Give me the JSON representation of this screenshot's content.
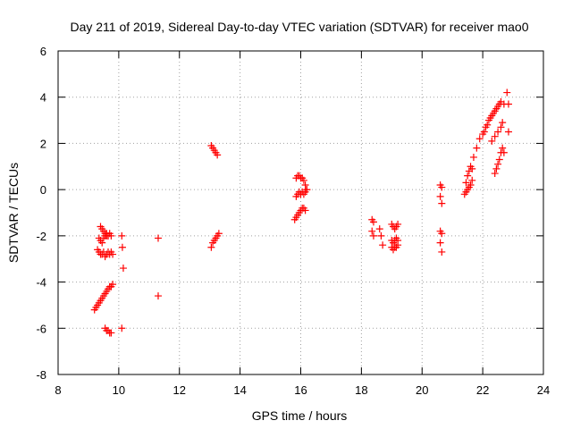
{
  "chart_data": {
    "type": "scatter",
    "title": "Day 211 of 2019, Sidereal Day-to-day VTEC variation (SDTVAR) for receiver mao0",
    "xlabel": "GPS time / hours",
    "ylabel": "SDTVAR / TECUs",
    "xlim": [
      8,
      24
    ],
    "ylim": [
      -8,
      6
    ],
    "xticks": [
      8,
      10,
      12,
      14,
      16,
      18,
      20,
      22,
      24
    ],
    "yticks": [
      -8,
      -6,
      -4,
      -2,
      0,
      2,
      4,
      6
    ],
    "xtick_labels": [
      "8",
      "10",
      "12",
      "14",
      "16",
      "18",
      "20",
      "22",
      "24"
    ],
    "ytick_labels": [
      "-8",
      "-6",
      "-4",
      "-2",
      "0",
      "2",
      "4",
      "6"
    ],
    "grid": true,
    "marker": "+",
    "color": "#ff0000",
    "series": [
      {
        "name": "SDTVAR",
        "x": [
          9.4,
          9.45,
          9.5,
          9.55,
          9.6,
          9.65,
          9.35,
          9.4,
          9.45,
          9.5,
          9.55,
          9.6,
          9.65,
          9.7,
          9.75,
          9.3,
          9.35,
          9.4,
          9.45,
          9.5,
          9.55,
          9.6,
          9.65,
          9.7,
          9.75,
          9.8,
          9.2,
          9.25,
          9.3,
          9.35,
          9.4,
          9.45,
          9.5,
          9.55,
          9.6,
          9.65,
          9.7,
          9.75,
          9.8,
          9.55,
          9.6,
          9.65,
          9.7,
          9.75,
          10.1,
          10.12,
          10.15,
          10.1,
          11.3,
          11.3,
          13.05,
          13.1,
          13.15,
          13.2,
          13.25,
          13.05,
          13.1,
          13.15,
          13.2,
          13.25,
          13.3,
          15.8,
          15.85,
          15.9,
          15.95,
          16.0,
          16.05,
          16.1,
          16.15,
          15.85,
          15.9,
          15.95,
          16.0,
          16.05,
          16.1,
          16.15,
          16.2,
          15.85,
          15.9,
          15.95,
          16.0,
          16.05,
          16.1,
          16.15,
          16.2,
          18.35,
          18.4,
          18.35,
          18.4,
          18.6,
          18.65,
          18.7,
          19.0,
          19.05,
          19.1,
          19.15,
          19.2,
          19.0,
          19.05,
          19.1,
          19.15,
          19.2,
          19.0,
          19.05,
          19.1,
          19.15,
          19.2,
          20.6,
          20.65,
          20.6,
          20.65,
          20.6,
          20.65,
          20.6,
          20.65,
          21.4,
          21.45,
          21.5,
          21.55,
          21.6,
          21.65,
          21.45,
          21.5,
          21.55,
          21.6,
          21.65,
          21.7,
          21.8,
          21.9,
          22.0,
          22.05,
          22.1,
          22.15,
          22.2,
          22.25,
          22.3,
          22.35,
          22.4,
          22.45,
          22.5,
          22.55,
          22.6,
          22.65,
          22.7,
          22.8,
          22.85,
          22.3,
          22.4,
          22.5,
          22.6,
          22.4,
          22.45,
          22.5,
          22.55,
          22.6,
          22.65,
          22.7,
          22.85
        ],
        "y": [
          -1.6,
          -1.7,
          -1.8,
          -1.9,
          -2.0,
          -2.0,
          -2.1,
          -2.2,
          -2.3,
          -2.1,
          -2.0,
          -1.9,
          -2.0,
          -1.9,
          -2.0,
          -2.6,
          -2.7,
          -2.8,
          -2.8,
          -2.7,
          -2.9,
          -2.8,
          -2.7,
          -2.8,
          -2.7,
          -2.8,
          -5.2,
          -5.1,
          -5.0,
          -4.9,
          -4.8,
          -4.7,
          -4.6,
          -4.5,
          -4.4,
          -4.3,
          -4.2,
          -4.2,
          -4.1,
          -6.0,
          -6.1,
          -6.1,
          -6.2,
          -6.2,
          -2.0,
          -2.5,
          -3.4,
          -6.0,
          -2.1,
          -4.6,
          1.9,
          1.8,
          1.7,
          1.6,
          1.5,
          -2.5,
          -2.3,
          -2.2,
          -2.1,
          -2.0,
          -1.9,
          -1.3,
          -1.2,
          -1.1,
          -1.0,
          -0.9,
          -0.8,
          -0.8,
          -0.9,
          0.5,
          0.6,
          0.6,
          0.5,
          0.5,
          0.4,
          0.2,
          0.0,
          -0.3,
          -0.2,
          -0.1,
          -0.2,
          -0.1,
          -0.2,
          -0.1,
          0.0,
          -1.3,
          -1.4,
          -1.8,
          -2.0,
          -1.7,
          -2.0,
          -2.4,
          -1.5,
          -1.6,
          -1.7,
          -1.6,
          -1.5,
          -2.2,
          -2.3,
          -2.2,
          -2.1,
          -2.2,
          -2.5,
          -2.6,
          -2.5,
          -2.5,
          -2.4,
          0.2,
          0.1,
          -0.3,
          -0.6,
          -1.8,
          -1.9,
          -2.3,
          -2.7,
          -0.2,
          0.3,
          0.6,
          0.8,
          1.0,
          0.9,
          -0.1,
          0.0,
          0.1,
          0.2,
          0.4,
          1.4,
          1.8,
          2.2,
          2.4,
          2.5,
          2.7,
          2.8,
          3.0,
          3.1,
          3.2,
          3.3,
          3.4,
          3.5,
          3.6,
          3.7,
          3.8,
          2.9,
          3.7,
          4.2,
          3.7,
          2.1,
          2.3,
          2.5,
          2.7,
          0.7,
          0.9,
          1.1,
          1.3,
          1.6,
          1.8,
          1.6,
          2.5
        ]
      }
    ]
  }
}
